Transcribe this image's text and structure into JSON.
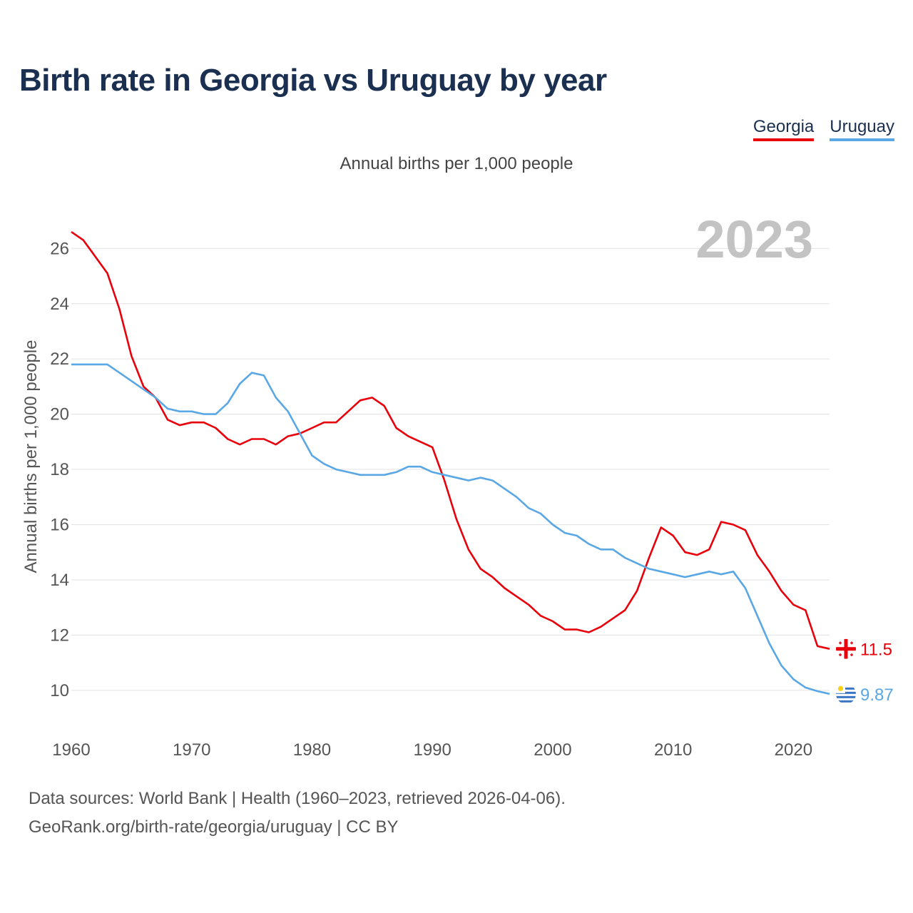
{
  "title": "Birth rate in Georgia vs Uruguay by year",
  "subtitle": "Annual births per 1,000 people",
  "year_watermark": "2023",
  "sources": {
    "line1": "Data sources: World Bank | Health (1960–2023, retrieved 2026-04-06).",
    "line2": "GeoRank.org/birth-rate/georgia/uruguay | CC BY"
  },
  "colors": {
    "georgia": "#e8000b",
    "uruguay": "#5aa7e6",
    "grid": "#e6e6e6",
    "axis_text": "#555555",
    "title": "#1b3050"
  },
  "legend": [
    {
      "label": "Georgia",
      "color": "#e8000b"
    },
    {
      "label": "Uruguay",
      "color": "#5aa7e6"
    }
  ],
  "chart_data": {
    "type": "line",
    "title": "Birth rate in Georgia vs Uruguay by year",
    "xlabel": "",
    "ylabel": "Annual births per 1,000 people",
    "xlim": [
      1960,
      2023
    ],
    "ylim": [
      8.6,
      27.3
    ],
    "xticks": [
      1960,
      1970,
      1980,
      1990,
      2000,
      2010,
      2020
    ],
    "yticks": [
      10,
      12,
      14,
      16,
      18,
      20,
      22,
      24,
      26
    ],
    "grid": true,
    "legend_position": "top-right",
    "x": [
      1960,
      1961,
      1962,
      1963,
      1964,
      1965,
      1966,
      1967,
      1968,
      1969,
      1970,
      1971,
      1972,
      1973,
      1974,
      1975,
      1976,
      1977,
      1978,
      1979,
      1980,
      1981,
      1982,
      1983,
      1984,
      1985,
      1986,
      1987,
      1988,
      1989,
      1990,
      1991,
      1992,
      1993,
      1994,
      1995,
      1996,
      1997,
      1998,
      1999,
      2000,
      2001,
      2002,
      2003,
      2004,
      2005,
      2006,
      2007,
      2008,
      2009,
      2010,
      2011,
      2012,
      2013,
      2014,
      2015,
      2016,
      2017,
      2018,
      2019,
      2020,
      2021,
      2022,
      2023
    ],
    "series": [
      {
        "name": "Georgia",
        "color": "#e8000b",
        "end_label": "11.5",
        "values": [
          26.6,
          26.3,
          25.7,
          25.1,
          23.8,
          22.1,
          21.0,
          20.6,
          19.8,
          19.6,
          19.7,
          19.7,
          19.5,
          19.1,
          18.9,
          19.1,
          19.1,
          18.9,
          19.2,
          19.3,
          19.5,
          19.7,
          19.7,
          20.1,
          20.5,
          20.6,
          20.3,
          19.5,
          19.2,
          19.0,
          18.8,
          17.6,
          16.2,
          15.1,
          14.4,
          14.1,
          13.7,
          13.4,
          13.1,
          12.7,
          12.5,
          12.2,
          12.2,
          12.1,
          12.3,
          12.6,
          12.9,
          13.6,
          14.8,
          15.9,
          15.6,
          15.0,
          14.9,
          15.1,
          16.1,
          16.0,
          15.8,
          14.9,
          14.3,
          13.6,
          13.1,
          12.9,
          11.6,
          11.5
        ]
      },
      {
        "name": "Uruguay",
        "color": "#5aa7e6",
        "end_label": "9.87",
        "values": [
          21.8,
          21.8,
          21.8,
          21.8,
          21.5,
          21.2,
          20.9,
          20.6,
          20.2,
          20.1,
          20.1,
          20.0,
          20.0,
          20.4,
          21.1,
          21.5,
          21.4,
          20.6,
          20.1,
          19.3,
          18.5,
          18.2,
          18.0,
          17.9,
          17.8,
          17.8,
          17.8,
          17.9,
          18.1,
          18.1,
          17.9,
          17.8,
          17.7,
          17.6,
          17.7,
          17.6,
          17.3,
          17.0,
          16.6,
          16.4,
          16.0,
          15.7,
          15.6,
          15.3,
          15.1,
          15.1,
          14.8,
          14.6,
          14.4,
          14.3,
          14.2,
          14.1,
          14.2,
          14.3,
          14.2,
          14.3,
          13.7,
          12.7,
          11.7,
          10.9,
          10.4,
          10.1,
          9.97,
          9.87
        ]
      }
    ]
  }
}
